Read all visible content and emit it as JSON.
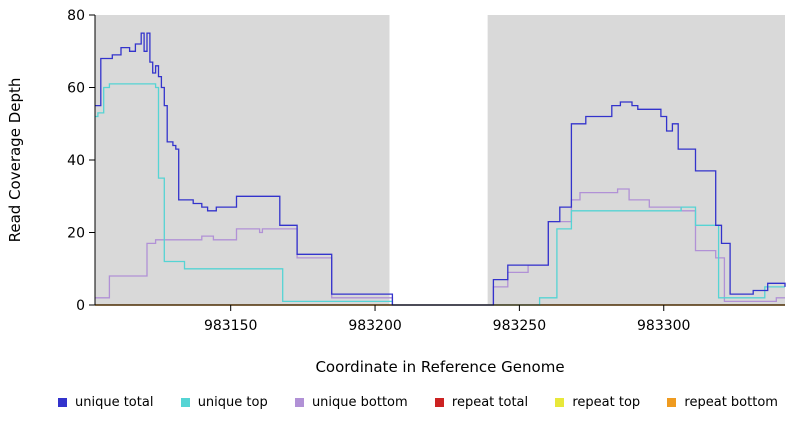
{
  "chart_data": {
    "type": "line",
    "step": true,
    "title": "",
    "xlabel": "Coordinate in Reference Genome",
    "ylabel": "Read Coverage Depth",
    "xlim": [
      983103,
      983342
    ],
    "ylim": [
      0,
      80
    ],
    "x_ticks": [
      983150,
      983200,
      983250,
      983300
    ],
    "y_ticks": [
      0,
      20,
      40,
      60,
      80
    ],
    "panel_color": "#d9d9d9",
    "gap_band": {
      "from": 983205,
      "to": 983239,
      "color": "#ffffff"
    },
    "grid": false,
    "legend_position": "bottom",
    "series": [
      {
        "name": "repeat total",
        "color": "#cc2222",
        "points": [
          [
            983103,
            0
          ],
          [
            983342,
            0
          ]
        ]
      },
      {
        "name": "repeat top",
        "color": "#e8e83a",
        "points": [
          [
            983103,
            0
          ],
          [
            983342,
            0
          ]
        ]
      },
      {
        "name": "repeat bottom",
        "color": "#ef9b20",
        "points": [
          [
            983103,
            0
          ],
          [
            983342,
            0
          ]
        ]
      },
      {
        "name": "unique bottom",
        "color": "#b191d6",
        "points": [
          [
            983103,
            2
          ],
          [
            983107,
            2
          ],
          [
            983108,
            8
          ],
          [
            983120,
            8
          ],
          [
            983121,
            17
          ],
          [
            983124,
            18
          ],
          [
            983139,
            18
          ],
          [
            983140,
            19
          ],
          [
            983144,
            18
          ],
          [
            983151,
            18
          ],
          [
            983152,
            21
          ],
          [
            983160,
            20
          ],
          [
            983161,
            21
          ],
          [
            983172,
            21
          ],
          [
            983173,
            13
          ],
          [
            983184,
            13
          ],
          [
            983185,
            2
          ],
          [
            983205,
            2
          ],
          [
            983206,
            0
          ],
          [
            983240,
            0
          ],
          [
            983241,
            5
          ],
          [
            983245,
            5
          ],
          [
            983246,
            9
          ],
          [
            983252,
            9
          ],
          [
            983253,
            11
          ],
          [
            983259,
            11
          ],
          [
            983260,
            23
          ],
          [
            983267,
            23
          ],
          [
            983268,
            29
          ],
          [
            983271,
            31
          ],
          [
            983283,
            31
          ],
          [
            983284,
            32
          ],
          [
            983287,
            32
          ],
          [
            983288,
            29
          ],
          [
            983294,
            29
          ],
          [
            983295,
            27
          ],
          [
            983305,
            27
          ],
          [
            983306,
            26
          ],
          [
            983310,
            26
          ],
          [
            983311,
            15
          ],
          [
            983317,
            15
          ],
          [
            983318,
            13
          ],
          [
            983320,
            13
          ],
          [
            983321,
            1
          ],
          [
            983338,
            1
          ],
          [
            983339,
            2
          ],
          [
            983342,
            2
          ]
        ]
      },
      {
        "name": "unique top",
        "color": "#55d4d4",
        "points": [
          [
            983103,
            52
          ],
          [
            983104,
            53
          ],
          [
            983106,
            60
          ],
          [
            983108,
            61
          ],
          [
            983123,
            61
          ],
          [
            983124,
            60
          ],
          [
            983125,
            35
          ],
          [
            983126,
            35
          ],
          [
            983127,
            12
          ],
          [
            983133,
            12
          ],
          [
            983134,
            10
          ],
          [
            983167,
            10
          ],
          [
            983168,
            1
          ],
          [
            983205,
            1
          ],
          [
            983206,
            0
          ],
          [
            983240,
            0
          ],
          [
            983256,
            0
          ],
          [
            983257,
            2
          ],
          [
            983262,
            2
          ],
          [
            983263,
            21
          ],
          [
            983267,
            21
          ],
          [
            983268,
            26
          ],
          [
            983305,
            26
          ],
          [
            983306,
            27
          ],
          [
            983310,
            27
          ],
          [
            983311,
            22
          ],
          [
            983318,
            22
          ],
          [
            983319,
            2
          ],
          [
            983334,
            2
          ],
          [
            983335,
            5
          ],
          [
            983342,
            5
          ]
        ]
      },
      {
        "name": "unique total",
        "color": "#3333cc",
        "points": [
          [
            983103,
            55
          ],
          [
            983105,
            68
          ],
          [
            983109,
            69
          ],
          [
            983112,
            71
          ],
          [
            983115,
            70
          ],
          [
            983117,
            72
          ],
          [
            983119,
            75
          ],
          [
            983120,
            70
          ],
          [
            983121,
            75
          ],
          [
            983122,
            67
          ],
          [
            983123,
            64
          ],
          [
            983124,
            66
          ],
          [
            983125,
            63
          ],
          [
            983126,
            60
          ],
          [
            983127,
            55
          ],
          [
            983128,
            45
          ],
          [
            983130,
            44
          ],
          [
            983131,
            43
          ],
          [
            983132,
            29
          ],
          [
            983136,
            29
          ],
          [
            983137,
            28
          ],
          [
            983140,
            27
          ],
          [
            983142,
            26
          ],
          [
            983145,
            27
          ],
          [
            983151,
            27
          ],
          [
            983152,
            30
          ],
          [
            983166,
            30
          ],
          [
            983167,
            22
          ],
          [
            983172,
            22
          ],
          [
            983173,
            14
          ],
          [
            983184,
            14
          ],
          [
            983185,
            3
          ],
          [
            983205,
            3
          ],
          [
            983206,
            0
          ],
          [
            983240,
            0
          ],
          [
            983241,
            7
          ],
          [
            983245,
            7
          ],
          [
            983246,
            11
          ],
          [
            983259,
            11
          ],
          [
            983260,
            23
          ],
          [
            983263,
            23
          ],
          [
            983264,
            27
          ],
          [
            983267,
            27
          ],
          [
            983268,
            50
          ],
          [
            983272,
            50
          ],
          [
            983273,
            52
          ],
          [
            983281,
            52
          ],
          [
            983282,
            55
          ],
          [
            983285,
            56
          ],
          [
            983289,
            55
          ],
          [
            983291,
            54
          ],
          [
            983297,
            54
          ],
          [
            983299,
            52
          ],
          [
            983301,
            48
          ],
          [
            983303,
            50
          ],
          [
            983305,
            43
          ],
          [
            983310,
            43
          ],
          [
            983311,
            37
          ],
          [
            983317,
            37
          ],
          [
            983318,
            22
          ],
          [
            983320,
            17
          ],
          [
            983322,
            17
          ],
          [
            983323,
            3
          ],
          [
            983329,
            3
          ],
          [
            983331,
            4
          ],
          [
            983335,
            4
          ],
          [
            983336,
            6
          ],
          [
            983340,
            6
          ],
          [
            983342,
            5
          ]
        ]
      }
    ]
  },
  "legend": {
    "items": [
      {
        "label": "unique total",
        "color": "#3333cc"
      },
      {
        "label": "unique top",
        "color": "#55d4d4"
      },
      {
        "label": "unique bottom",
        "color": "#b191d6"
      },
      {
        "label": "repeat total",
        "color": "#cc2222"
      },
      {
        "label": "repeat top",
        "color": "#e8e83a"
      },
      {
        "label": "repeat bottom",
        "color": "#ef9b20"
      }
    ]
  }
}
